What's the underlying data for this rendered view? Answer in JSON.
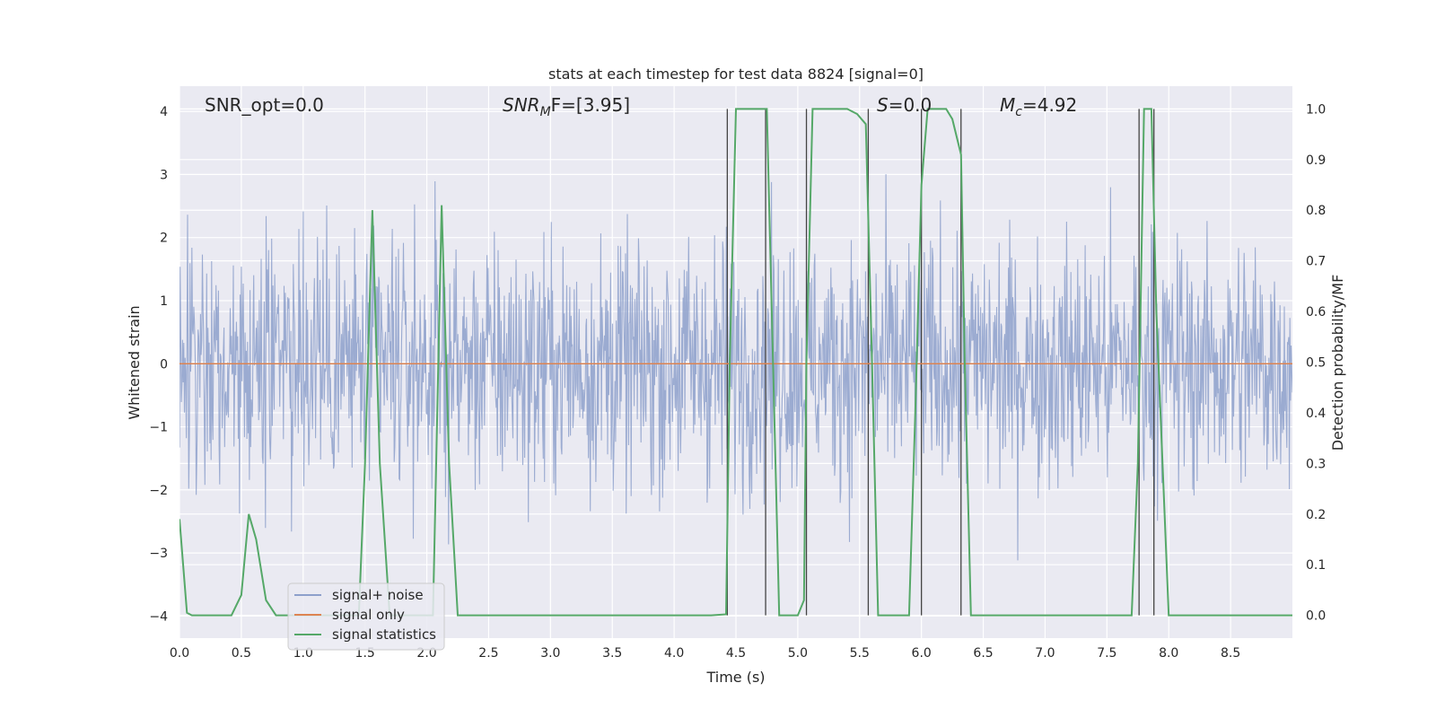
{
  "chart_data": {
    "type": "line",
    "title": "stats at each timestep for test data 8824 [signal=0]",
    "xlabel": "Time (s)",
    "ylabel": "Whitened strain",
    "y2label": "Detection probability/MF",
    "xlim": [
      0.0,
      9.0
    ],
    "ylim": [
      -4.35,
      4.4
    ],
    "y2lim": [
      -0.045,
      1.045
    ],
    "xticks": [
      "0.0",
      "0.5",
      "1.0",
      "1.5",
      "2.0",
      "2.5",
      "3.0",
      "3.5",
      "4.0",
      "4.5",
      "5.0",
      "5.5",
      "6.0",
      "6.5",
      "7.0",
      "7.5",
      "8.0",
      "8.5"
    ],
    "yticks": [
      "4",
      "3",
      "2",
      "1",
      "0",
      "−1",
      "−2",
      "−3",
      "−4"
    ],
    "y2ticks": [
      "1.0",
      "0.9",
      "0.8",
      "0.7",
      "0.6",
      "0.5",
      "0.4",
      "0.3",
      "0.2",
      "0.1",
      "0.0"
    ],
    "grid": true,
    "legend_position": "lower-left",
    "annotations": {
      "snr_opt": "SNR_opt=0.0",
      "snr_mf_base": "SNR",
      "snr_mf_sub": "M",
      "snr_mf_rest": "F=[3.95]",
      "s_sym": "S",
      "s_rest": "=0.0",
      "mc_sym": "M",
      "mc_sub": "c",
      "mc_rest": "=4.92"
    },
    "series": [
      {
        "name": "signal+ noise",
        "color": "#8da0cb",
        "kind": "strain noise, amplitude about ±2.5 with peaks near ±4"
      },
      {
        "name": "signal only",
        "color": "#dd8452",
        "values_constant": 0.0
      },
      {
        "name": "signal statistics",
        "color": "#55a868",
        "x": [
          0.0,
          0.06,
          0.1,
          0.18,
          0.3,
          0.42,
          0.5,
          0.56,
          0.62,
          0.7,
          0.78,
          0.9,
          1.05,
          1.2,
          1.35,
          1.45,
          1.5,
          1.56,
          1.62,
          1.7,
          1.8,
          1.95,
          2.05,
          2.12,
          2.18,
          2.25,
          2.4,
          3.0,
          3.5,
          4.0,
          4.3,
          4.42,
          4.45,
          4.5,
          4.55,
          4.65,
          4.75,
          4.8,
          4.85,
          4.92,
          5.0,
          5.05,
          5.07,
          5.12,
          5.2,
          5.3,
          5.4,
          5.48,
          5.55,
          5.6,
          5.65,
          5.7,
          5.8,
          5.9,
          5.95,
          6.0,
          6.05,
          6.1,
          6.2,
          6.25,
          6.32,
          6.35,
          6.4,
          6.5,
          7.0,
          7.5,
          7.7,
          7.75,
          7.8,
          7.86,
          7.9,
          7.95,
          8.0,
          8.3,
          8.6,
          9.0
        ],
        "values": [
          0.19,
          0.005,
          0.0,
          0.0,
          0.0,
          0.0,
          0.04,
          0.2,
          0.15,
          0.03,
          0.0,
          0.0,
          0.0,
          0.0,
          0.0,
          0.0,
          0.3,
          0.8,
          0.3,
          0.0,
          0.0,
          0.0,
          0.0,
          0.81,
          0.3,
          0.0,
          0.0,
          0.0,
          0.0,
          0.0,
          0.0,
          0.002,
          0.5,
          1.0,
          1.0,
          1.0,
          1.0,
          0.5,
          0.0,
          0.0,
          0.0,
          0.03,
          0.5,
          1.0,
          1.0,
          1.0,
          1.0,
          0.99,
          0.97,
          0.5,
          0.0,
          0.0,
          0.0,
          0.0,
          0.4,
          0.85,
          1.0,
          1.0,
          1.0,
          0.98,
          0.91,
          0.5,
          0.0,
          0.0,
          0.0,
          0.0,
          0.0,
          0.3,
          1.0,
          1.0,
          0.6,
          0.3,
          0.0,
          0.0,
          0.0,
          0.0
        ]
      }
    ],
    "vertical_lines_x": [
      4.43,
      4.74,
      5.07,
      5.57,
      6.0,
      6.32,
      7.76,
      7.88
    ]
  }
}
